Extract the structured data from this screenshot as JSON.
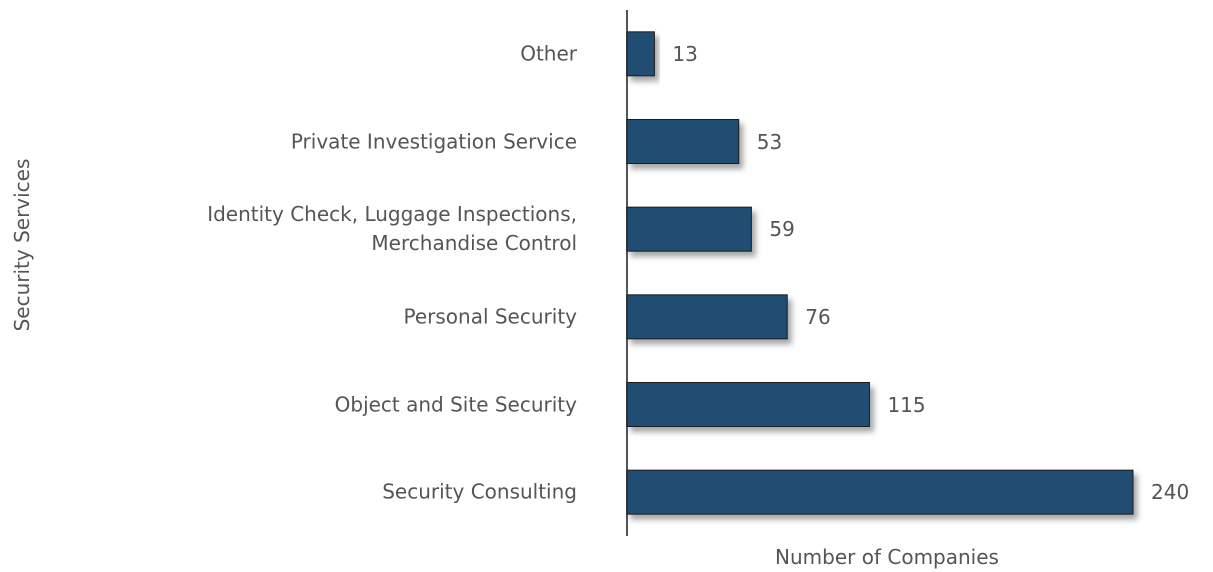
{
  "chart_data": {
    "type": "bar",
    "orientation": "horizontal",
    "xlabel": "Number of Companies",
    "ylabel": "Security Services",
    "categories": [
      "Other",
      "Private Investigation Service",
      "Identity Check, Luggage Inspections,\nMerchandise Control",
      "Personal Security",
      "Object and Site Security",
      "Security Consulting"
    ],
    "values": [
      13,
      53,
      59,
      76,
      115,
      240
    ],
    "color": "#234e73",
    "xlim": [
      0,
      240
    ]
  }
}
